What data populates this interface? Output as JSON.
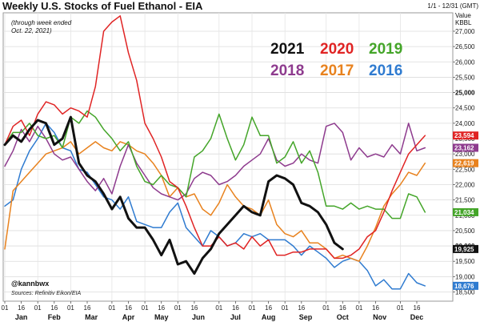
{
  "chart_data": {
    "type": "line",
    "title": "Weekly U.S. Stocks of Fuel Ethanol - EIA",
    "subtitle_line1": "(through week ended",
    "subtitle_line2": "Oct. 22, 2021)",
    "date_range": "1/1 - 12/31 (GMT)",
    "ylabel_line1": "Value",
    "ylabel_line2": "KBBL",
    "ylim": [
      18200,
      27600
    ],
    "grid": true,
    "legend_position": "top-right",
    "credit": "@kannbwx",
    "sources": "Sources: Refinitiv Eikon/EIA",
    "yticks": [
      {
        "value": 18500,
        "label": "18,500"
      },
      {
        "value": 19000,
        "label": "19,000"
      },
      {
        "value": 19500,
        "label": "19,500"
      },
      {
        "value": 20000,
        "label": "20,000"
      },
      {
        "value": 20500,
        "label": "20,500"
      },
      {
        "value": 21000,
        "label": "21,000"
      },
      {
        "value": 21500,
        "label": "21,500"
      },
      {
        "value": 22000,
        "label": "22,000"
      },
      {
        "value": 22500,
        "label": "22,500"
      },
      {
        "value": 23000,
        "label": "23,000"
      },
      {
        "value": 23500,
        "label": "23,500"
      },
      {
        "value": 24000,
        "label": "24,000"
      },
      {
        "value": 24500,
        "label": "24,500"
      },
      {
        "value": 25000,
        "label": "25,000"
      },
      {
        "value": 25500,
        "label": "25,500"
      },
      {
        "value": 26000,
        "label": "26,000"
      },
      {
        "value": 26500,
        "label": "26,500"
      },
      {
        "value": 27000,
        "label": "27,000"
      }
    ],
    "bold_ytick_values": [
      20000,
      25000
    ],
    "months": [
      "Jan",
      "Feb",
      "Mar",
      "Apr",
      "May",
      "Jun",
      "Jul",
      "Aug",
      "Sep",
      "Oct",
      "Nov",
      "Dec"
    ],
    "xtick_labels": [
      "01",
      "16",
      "01",
      "16",
      "01",
      "16",
      "01",
      "16",
      "01",
      "16",
      "01",
      "16",
      "01",
      "16",
      "01",
      "16",
      "01",
      "16",
      "01",
      "16",
      "01",
      "16",
      "01",
      "16"
    ],
    "series": [
      {
        "name": "2016",
        "color": "#2f7bd0",
        "last_label": "18,676",
        "width": 1.5,
        "x": [
          1,
          2,
          3,
          4,
          5,
          6,
          7,
          8,
          9,
          10,
          11,
          12,
          13,
          14,
          15,
          16,
          17,
          18,
          19,
          20,
          21,
          22,
          23,
          24,
          25,
          26,
          27,
          28,
          29,
          30,
          31,
          32,
          33,
          34,
          35,
          36,
          37,
          38,
          39,
          40,
          41,
          42,
          43,
          44,
          45,
          46,
          47,
          48,
          49,
          50,
          51,
          52
        ],
        "values": [
          21300,
          21500,
          22500,
          23100,
          23500,
          24000,
          23700,
          23200,
          23100,
          22500,
          22400,
          22000,
          21600,
          21500,
          21200,
          21600,
          20800,
          20700,
          20600,
          20600,
          21100,
          21400,
          20600,
          20300,
          20000,
          20500,
          20300,
          20000,
          20100,
          20400,
          20300,
          20400,
          20200,
          20200,
          20200,
          20000,
          19700,
          20000,
          19800,
          19600,
          19300,
          19500,
          19600,
          19500,
          19200,
          18700,
          18900,
          18600,
          18600,
          19100,
          18800,
          18700
        ]
      },
      {
        "name": "2017",
        "color": "#e8821e",
        "last_label": "22,619",
        "width": 1.5,
        "x": [
          1,
          2,
          3,
          4,
          5,
          6,
          7,
          8,
          9,
          10,
          11,
          12,
          13,
          14,
          15,
          16,
          17,
          18,
          19,
          20,
          21,
          22,
          23,
          24,
          25,
          26,
          27,
          28,
          29,
          30,
          31,
          32,
          33,
          34,
          35,
          36,
          37,
          38,
          39,
          40,
          41,
          42,
          43,
          44,
          45,
          46,
          47,
          48,
          49,
          50,
          51,
          52
        ],
        "values": [
          19900,
          21800,
          22100,
          22400,
          22700,
          23000,
          23100,
          23200,
          23400,
          23000,
          23200,
          23400,
          23200,
          23100,
          23400,
          23300,
          23100,
          23000,
          22700,
          22300,
          21600,
          21900,
          21600,
          21700,
          21200,
          21000,
          21400,
          22000,
          21600,
          21300,
          21200,
          21000,
          21500,
          20700,
          20400,
          20300,
          20500,
          20100,
          20100,
          19900,
          19600,
          19700,
          19600,
          19500,
          20000,
          20600,
          21300,
          21700,
          22000,
          22400,
          22300,
          22700
        ]
      },
      {
        "name": "2018",
        "color": "#8e3b8e",
        "last_label": "23,162",
        "width": 1.5,
        "x": [
          1,
          2,
          3,
          4,
          5,
          6,
          7,
          8,
          9,
          10,
          11,
          12,
          13,
          14,
          15,
          16,
          17,
          18,
          19,
          20,
          21,
          22,
          23,
          24,
          25,
          26,
          27,
          28,
          29,
          30,
          31,
          32,
          33,
          34,
          35,
          36,
          37,
          38,
          39,
          40,
          41,
          42,
          43,
          44,
          45,
          46,
          47,
          48,
          49,
          50,
          51,
          52
        ],
        "values": [
          22600,
          23100,
          23800,
          23400,
          23900,
          23500,
          23000,
          22800,
          22900,
          22500,
          22100,
          21800,
          22200,
          21700,
          22600,
          23300,
          22700,
          22300,
          21900,
          21700,
          21600,
          21500,
          21700,
          22200,
          22400,
          22300,
          22000,
          22100,
          22300,
          22600,
          22800,
          23000,
          23500,
          22800,
          22600,
          22700,
          23000,
          22800,
          22700,
          23900,
          24000,
          23700,
          22800,
          23200,
          22900,
          23000,
          22900,
          23300,
          23000,
          24000,
          23100,
          23200
        ]
      },
      {
        "name": "2019",
        "color": "#44a529",
        "last_label": "21,034",
        "width": 1.5,
        "x": [
          1,
          2,
          3,
          4,
          5,
          6,
          7,
          8,
          9,
          10,
          11,
          12,
          13,
          14,
          15,
          16,
          17,
          18,
          19,
          20,
          21,
          22,
          23,
          24,
          25,
          26,
          27,
          28,
          29,
          30,
          31,
          32,
          33,
          34,
          35,
          36,
          37,
          38,
          39,
          40,
          41,
          42,
          43,
          44,
          45,
          46,
          47,
          48,
          49,
          50,
          51,
          52
        ],
        "values": [
          23300,
          23700,
          23700,
          24000,
          23600,
          23500,
          23600,
          23200,
          24200,
          24000,
          24400,
          24200,
          23800,
          23500,
          23100,
          23400,
          22600,
          22100,
          22000,
          22300,
          22000,
          21900,
          21600,
          22900,
          23100,
          23500,
          24300,
          23500,
          22800,
          23300,
          24200,
          23600,
          23600,
          22700,
          22900,
          23400,
          22700,
          23100,
          22400,
          21300,
          21300,
          21200,
          21400,
          21200,
          21300,
          21200,
          21200,
          20900,
          20900,
          21700,
          21600,
          21100
        ]
      },
      {
        "name": "2020",
        "color": "#e02424",
        "last_label": "23,594",
        "width": 1.5,
        "x": [
          1,
          2,
          3,
          4,
          5,
          6,
          7,
          8,
          9,
          10,
          11,
          12,
          13,
          14,
          15,
          16,
          17,
          18,
          19,
          20,
          21,
          22,
          23,
          24,
          25,
          26,
          27,
          28,
          29,
          30,
          31,
          32,
          33,
          34,
          35,
          36,
          37,
          38,
          39,
          40,
          41,
          42,
          43,
          44,
          45,
          46,
          47,
          48,
          49,
          50,
          51,
          52
        ],
        "values": [
          23300,
          23900,
          24100,
          23600,
          24300,
          24700,
          24600,
          24300,
          24500,
          24400,
          24200,
          25200,
          27000,
          27300,
          27500,
          26300,
          25400,
          24000,
          23500,
          22900,
          22100,
          21900,
          21300,
          20600,
          20000,
          20000,
          20300,
          20000,
          20100,
          19900,
          20300,
          20000,
          20200,
          19700,
          19700,
          19800,
          19800,
          19900,
          19900,
          19900,
          19600,
          19600,
          19700,
          19900,
          20300,
          20500,
          21100,
          21800,
          22400,
          23000,
          23300,
          23600
        ]
      },
      {
        "name": "2021",
        "color": "#111111",
        "last_label": "19,925",
        "width": 3,
        "x": [
          1,
          2,
          3,
          4,
          5,
          6,
          7,
          8,
          9,
          10,
          11,
          12,
          13,
          14,
          15,
          16,
          17,
          18,
          19,
          20,
          21,
          22,
          23,
          24,
          25,
          26,
          27,
          28,
          29,
          30,
          31,
          32,
          33,
          34,
          35,
          36,
          37,
          38,
          39,
          40,
          41,
          42
        ],
        "values": [
          23300,
          23600,
          23400,
          23800,
          24100,
          24000,
          23300,
          23500,
          24200,
          22700,
          22300,
          22100,
          21700,
          21200,
          21600,
          20900,
          20600,
          20600,
          20200,
          19700,
          20200,
          19400,
          19500,
          19100,
          19600,
          19900,
          20400,
          20700,
          21000,
          21300,
          21100,
          21000,
          22100,
          22300,
          22200,
          22000,
          21400,
          21300,
          21100,
          20700,
          20100,
          19900
        ]
      }
    ]
  }
}
